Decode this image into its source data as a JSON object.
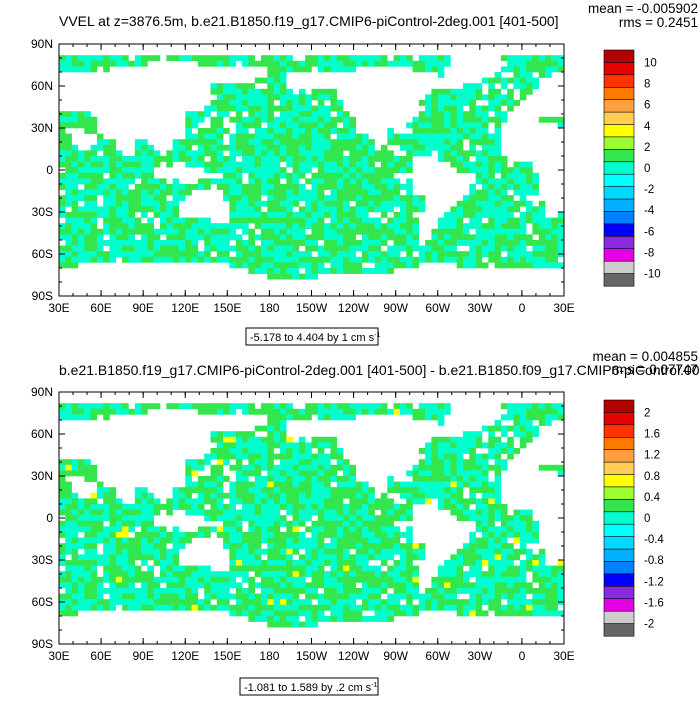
{
  "chart_data": [
    {
      "type": "heatmap",
      "title": "VVEL at z=3876.5m, b.e21.B1850.f19_g17.CMIP6-piControl-2deg.001 [401-500]",
      "mean_text": "mean = -0.005902",
      "rms_text": "rms = 0.2451",
      "range_text": "-5.178 to 4.404 by 1 cm s",
      "range_superscript": "-1",
      "x_ticks": [
        "30E",
        "60E",
        "90E",
        "120E",
        "150E",
        "180",
        "150W",
        "120W",
        "90W",
        "60W",
        "30W",
        "0",
        "30E"
      ],
      "y_ticks": [
        "90N",
        "60N",
        "30N",
        "0",
        "30S",
        "60S",
        "90S"
      ],
      "colorbar_labels": [
        "10",
        "8",
        "6",
        "4",
        "2",
        "0",
        "-2",
        "-4",
        "-6",
        "-8",
        "-10"
      ],
      "dominant_color": "#00ffcc",
      "secondary_color": "#33e64d"
    },
    {
      "type": "heatmap",
      "title": "b.e21.B1850.f19_g17.CMIP6-piControl-2deg.001 [401-500] - b.e21.B1850.f09_g17.CMIP6-piControl.001",
      "mean_text": "mean = 0.004855",
      "rms_text": "rms = 0.07747",
      "range_text": "-1.081 to 1.589 by .2 cm s",
      "range_superscript": "-1",
      "x_ticks": [
        "30E",
        "60E",
        "90E",
        "120E",
        "150E",
        "180",
        "150W",
        "120W",
        "90W",
        "60W",
        "30W",
        "0",
        "30E"
      ],
      "y_ticks": [
        "90N",
        "60N",
        "30N",
        "0",
        "30S",
        "60S",
        "90S"
      ],
      "colorbar_labels": [
        "2",
        "1.6",
        "1.2",
        "0.8",
        "0.4",
        "0",
        "-0.4",
        "-0.8",
        "-1.2",
        "-1.6",
        "-2"
      ],
      "dominant_color": "#00ffcc",
      "secondary_color": "#33e64d"
    }
  ],
  "colormap": [
    "#b30000",
    "#e60000",
    "#ff3300",
    "#ff7a00",
    "#ffa040",
    "#ffcc55",
    "#ffff00",
    "#99ff33",
    "#33e64d",
    "#00ffcc",
    "#00ffff",
    "#00d9ff",
    "#00b0ff",
    "#0080ff",
    "#0000ff",
    "#8a2be2",
    "#e600e6",
    "#cccccc",
    "#666666"
  ]
}
